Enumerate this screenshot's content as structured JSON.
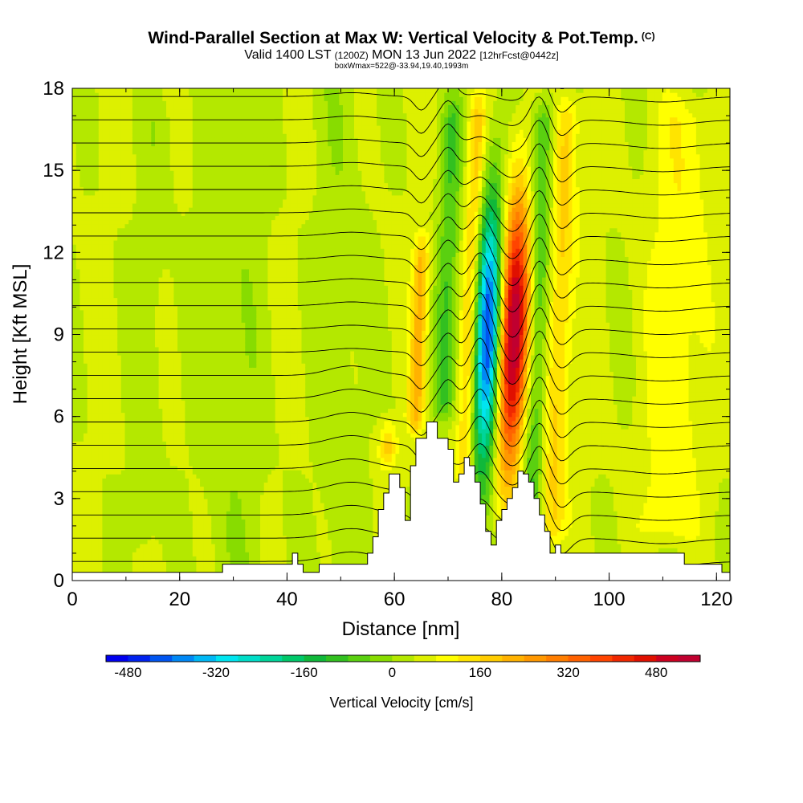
{
  "header": {
    "title": "Wind-Parallel Section at Max W: Vertical Velocity & Pot.Temp.",
    "title_mark": "(C)",
    "valid_prefix": "Valid 1400 LST",
    "valid_zulu": "(1200Z)",
    "valid_date": "MON 13 Jun 2022",
    "forecast_info": "[12hrFcst@0442z]",
    "box_info": "boxWmax=522@-33.94,19.40,1993m"
  },
  "chart_data": {
    "type": "heatmap",
    "title": "Wind-Parallel Section at Max W: Vertical Velocity & Pot.Temp.",
    "xlabel": "Distance [nm]",
    "ylabel": "Height [Kft MSL]",
    "xlim": [
      0,
      122.5
    ],
    "ylim": [
      0,
      18
    ],
    "x_ticks": [
      0,
      20,
      40,
      60,
      80,
      100,
      120
    ],
    "y_ticks": [
      0,
      3,
      6,
      9,
      12,
      15,
      18
    ],
    "max_vertical_velocity_cms": 522,
    "vertical_velocity_bands": [
      {
        "x": 59,
        "w": 1.6,
        "amp": 150,
        "bottom": 3.8,
        "top": 6.0
      },
      {
        "x": 64,
        "w": 1.5,
        "amp": 170,
        "bottom": 5.0,
        "top": 13.0
      },
      {
        "x": 69,
        "w": 2.0,
        "amp": -120,
        "bottom": 5.5,
        "top": 18.0
      },
      {
        "x": 73.5,
        "w": 1.6,
        "amp": 140,
        "bottom": 3.2,
        "top": 18.0
      },
      {
        "x": 77,
        "w": 2.6,
        "amp": -500,
        "bottom": 1.8,
        "top": 18.0
      },
      {
        "x": 81.5,
        "w": 3.0,
        "amp": 520,
        "bottom": 1.8,
        "top": 18.0
      },
      {
        "x": 86,
        "w": 2.2,
        "amp": -150,
        "bottom": 1.0,
        "top": 18.0
      },
      {
        "x": 90,
        "w": 2.5,
        "amp": 130,
        "bottom": 1.0,
        "top": 18.0
      },
      {
        "x": 112,
        "w": 5.0,
        "amp": 70,
        "bottom": 1.0,
        "top": 18.0
      },
      {
        "x": 14,
        "w": 3.0,
        "amp": -30,
        "bottom": 0.5,
        "top": 18.0
      }
    ],
    "terrain_profile": {
      "x": [
        0,
        28,
        28,
        41,
        41,
        42,
        42,
        43,
        43,
        46,
        46,
        55,
        55,
        56,
        56,
        57,
        57,
        58,
        58,
        59,
        59,
        61,
        61,
        62,
        62,
        63,
        63,
        64,
        64,
        66,
        66,
        68,
        68,
        70,
        70,
        71,
        71,
        72,
        72,
        73,
        73,
        74,
        74,
        75,
        75,
        76,
        76,
        77,
        77,
        78,
        78,
        79,
        79,
        80,
        80,
        81,
        81,
        82,
        82,
        83,
        83,
        84,
        84,
        85,
        85,
        86,
        86,
        87,
        87,
        88,
        88,
        89,
        89,
        90,
        90,
        91,
        91,
        92,
        92,
        114,
        114,
        121,
        121
      ],
      "h": [
        0.3,
        0.3,
        0.6,
        0.6,
        1.0,
        1.0,
        0.6,
        0.6,
        0.3,
        0.3,
        0.6,
        0.6,
        1.0,
        1.0,
        1.6,
        1.6,
        2.6,
        2.6,
        3.2,
        3.2,
        3.9,
        3.9,
        3.4,
        3.4,
        2.2,
        2.2,
        4.2,
        4.2,
        5.2,
        5.2,
        5.8,
        5.8,
        5.2,
        5.2,
        4.8,
        4.8,
        3.6,
        3.6,
        3.9,
        3.9,
        4.5,
        4.5,
        4.2,
        4.2,
        3.6,
        3.6,
        2.8,
        2.8,
        1.8,
        1.8,
        1.3,
        1.3,
        2.2,
        2.2,
        2.6,
        2.6,
        3.0,
        3.0,
        3.4,
        3.4,
        4.0,
        4.0,
        3.9,
        3.9,
        3.6,
        3.6,
        3.0,
        3.0,
        2.4,
        2.4,
        1.8,
        1.8,
        1.0,
        1.0,
        1.3,
        1.3,
        1.0,
        1.0,
        1.0,
        1.0,
        0.6,
        0.6,
        0.3
      ]
    },
    "colorbar": {
      "label": "Vertical Velocity [cm/s]",
      "min": -520,
      "max": 560,
      "step": 40,
      "tick_values": [
        -480,
        -320,
        -160,
        0,
        160,
        320,
        480
      ],
      "tick_labels": [
        "-480",
        "-320",
        "-160",
        "0",
        "160",
        "320",
        "480"
      ],
      "colors": [
        "#0000ee",
        "#0022ee",
        "#0055f0",
        "#0088f5",
        "#00b8f5",
        "#00e5f0",
        "#00ddc8",
        "#00d59a",
        "#00c86a",
        "#10b83a",
        "#32c020",
        "#5ad010",
        "#88dc00",
        "#b4e800",
        "#ddf000",
        "#ffff00",
        "#ffe400",
        "#ffcc00",
        "#ffb200",
        "#ff9800",
        "#ff7e00",
        "#ff6200",
        "#ff4400",
        "#f02800",
        "#e01000",
        "#cc0020",
        "#c00030"
      ]
    },
    "theta_contours": {
      "levels": 30,
      "spacing_kft": 0.85,
      "label_values": [
        "",
        "",
        "",
        "",
        "",
        "",
        "",
        "",
        "",
        "",
        "",
        "",
        "",
        "",
        "",
        "",
        "",
        ""
      ]
    }
  }
}
